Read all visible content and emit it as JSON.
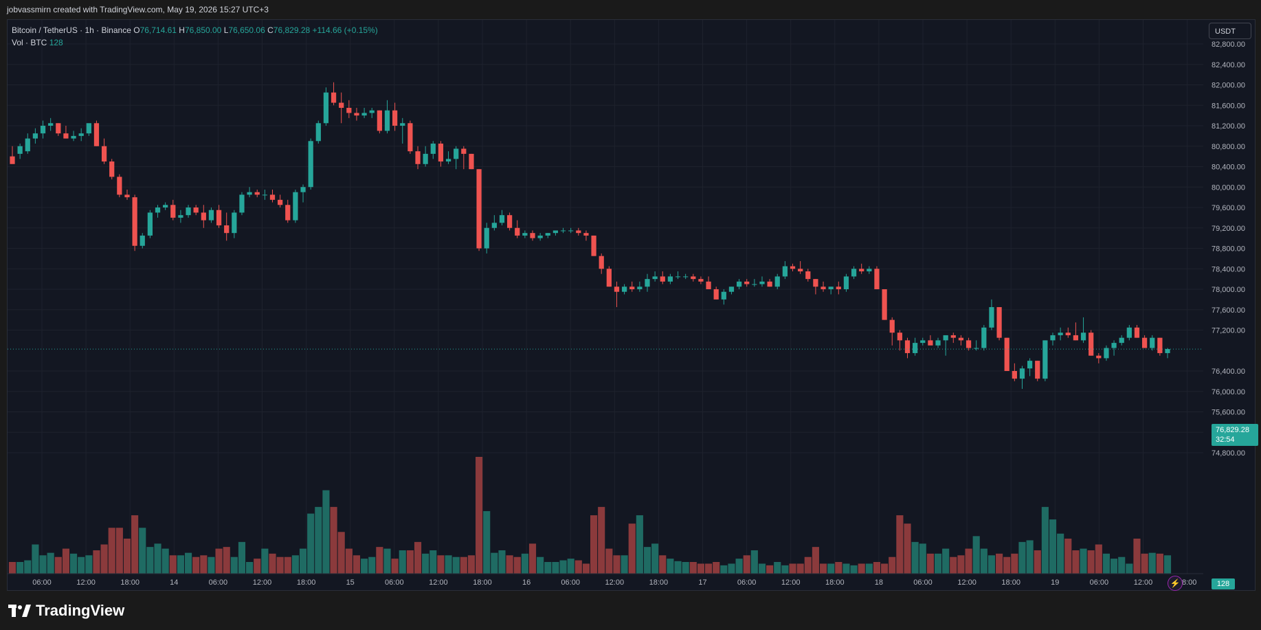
{
  "header": {
    "attribution": "jobvassmirn created with TradingView.com, May 19, 2026 15:27 UTC+3"
  },
  "legend": {
    "symbol": "Bitcoin / TetherUS · 1h · Binance",
    "o_label": "O",
    "o": "76,714.61",
    "h_label": "H",
    "h": "76,850.00",
    "l_label": "L",
    "l": "76,650.06",
    "c_label": "C",
    "c": "76,829.28",
    "change": "+114.66 (+0.15%)",
    "vol_label": "Vol · BTC",
    "vol_value": "128"
  },
  "currency": "USDT",
  "last_price": "76,829.28",
  "countdown": "32:54",
  "last_volume": "128",
  "brand": "TradingView",
  "colors": {
    "up": "#26a69a",
    "down": "#ef5350",
    "up_vol": "#1f6b63",
    "down_vol": "#8b3a3c",
    "background": "#131722",
    "grid": "#1e222d"
  },
  "chart_data": {
    "type": "candlestick",
    "interval": "1h",
    "y_ticks": [
      "82,800.00",
      "82,400.00",
      "82,000.00",
      "81,600.00",
      "81,200.00",
      "80,800.00",
      "80,400.00",
      "80,000.00",
      "79,600.00",
      "79,200.00",
      "78,800.00",
      "78,400.00",
      "78,000.00",
      "77,600.00",
      "77,200.00",
      "76,400.00",
      "76,000.00",
      "75,600.00",
      "75,200.00",
      "74,800.00"
    ],
    "x_ticks": [
      "06:00",
      "12:00",
      "18:00",
      "14",
      "06:00",
      "12:00",
      "18:00",
      "15",
      "06:00",
      "12:00",
      "18:00",
      "16",
      "06:00",
      "12:00",
      "18:00",
      "17",
      "06:00",
      "12:00",
      "18:00",
      "18",
      "06:00",
      "12:00",
      "18:00",
      "19",
      "06:00",
      "12:00",
      "18:00"
    ],
    "ohlc": [
      [
        80600,
        80800,
        80500,
        80450
      ],
      [
        80650,
        80850,
        80550,
        80800
      ],
      [
        80700,
        81050,
        80650,
        80950
      ],
      [
        80950,
        81150,
        80850,
        81050
      ],
      [
        81050,
        81300,
        80950,
        81200
      ],
      [
        81200,
        81350,
        81100,
        81250
      ],
      [
        81250,
        81250,
        81000,
        81050
      ],
      [
        81050,
        81200,
        80950,
        80950
      ],
      [
        80950,
        81100,
        80900,
        81000
      ],
      [
        81000,
        81150,
        80900,
        81050
      ],
      [
        81050,
        81200,
        81000,
        81250
      ],
      [
        81250,
        81300,
        80800,
        80800
      ],
      [
        80800,
        80950,
        80450,
        80500
      ],
      [
        80500,
        80550,
        80150,
        80200
      ],
      [
        80200,
        80250,
        79800,
        79850
      ],
      [
        79850,
        79950,
        79750,
        79800
      ],
      [
        79800,
        79850,
        78750,
        78850
      ],
      [
        78850,
        79100,
        78800,
        79050
      ],
      [
        79050,
        79550,
        79000,
        79500
      ],
      [
        79500,
        79650,
        79400,
        79600
      ],
      [
        79600,
        79700,
        79550,
        79650
      ],
      [
        79650,
        79750,
        79350,
        79400
      ],
      [
        79400,
        79550,
        79300,
        79450
      ],
      [
        79450,
        79650,
        79400,
        79600
      ],
      [
        79600,
        79650,
        79450,
        79500
      ],
      [
        79500,
        79650,
        79200,
        79350
      ],
      [
        79350,
        79600,
        79300,
        79550
      ],
      [
        79550,
        79650,
        79200,
        79250
      ],
      [
        79250,
        79500,
        78950,
        79100
      ],
      [
        79100,
        79550,
        79000,
        79500
      ],
      [
        79500,
        79900,
        79450,
        79850
      ],
      [
        79850,
        80000,
        79800,
        79900
      ],
      [
        79900,
        79950,
        79800,
        79850
      ],
      [
        79850,
        79950,
        79750,
        79850
      ],
      [
        79850,
        79950,
        79700,
        79750
      ],
      [
        79750,
        79850,
        79600,
        79650
      ],
      [
        79650,
        79750,
        79300,
        79350
      ],
      [
        79350,
        79950,
        79300,
        79900
      ],
      [
        79900,
        80050,
        79700,
        80000
      ],
      [
        80000,
        80950,
        79950,
        80900
      ],
      [
        80900,
        81300,
        80850,
        81250
      ],
      [
        81250,
        81950,
        81200,
        81850
      ],
      [
        81850,
        82050,
        81600,
        81650
      ],
      [
        81650,
        81850,
        81250,
        81550
      ],
      [
        81550,
        81700,
        81350,
        81450
      ],
      [
        81450,
        81550,
        81300,
        81400
      ],
      [
        81400,
        81550,
        81350,
        81450
      ],
      [
        81450,
        81550,
        81350,
        81500
      ],
      [
        81500,
        81500,
        81050,
        81100
      ],
      [
        81100,
        81700,
        81050,
        81500
      ],
      [
        81500,
        81650,
        81100,
        81200
      ],
      [
        81200,
        81350,
        80850,
        81250
      ],
      [
        81250,
        81300,
        80650,
        80700
      ],
      [
        80700,
        80800,
        80350,
        80450
      ],
      [
        80450,
        80800,
        80400,
        80650
      ],
      [
        80650,
        80900,
        80550,
        80850
      ],
      [
        80850,
        80900,
        80400,
        80500
      ],
      [
        80500,
        80700,
        80450,
        80550
      ],
      [
        80550,
        80800,
        80350,
        80750
      ],
      [
        80750,
        80800,
        80350,
        80650
      ],
      [
        80650,
        80650,
        80350,
        80350
      ],
      [
        80350,
        80350,
        78750,
        78800
      ],
      [
        78800,
        79300,
        78700,
        79200
      ],
      [
        79200,
        79450,
        79150,
        79300
      ],
      [
        79300,
        79550,
        79250,
        79450
      ],
      [
        79450,
        79500,
        79150,
        79200
      ],
      [
        79200,
        79350,
        79000,
        79050
      ],
      [
        79050,
        79150,
        79000,
        79100
      ],
      [
        79100,
        79150,
        78950,
        79000
      ],
      [
        79000,
        79100,
        78950,
        79050
      ],
      [
        79050,
        79100,
        79000,
        79100
      ],
      [
        79100,
        79150,
        79050,
        79150
      ],
      [
        79150,
        79200,
        79100,
        79150
      ],
      [
        79150,
        79200,
        79100,
        79150
      ],
      [
        79150,
        79200,
        79050,
        79100
      ],
      [
        79100,
        79150,
        78950,
        79050
      ],
      [
        79050,
        79050,
        78650,
        78650
      ],
      [
        78650,
        78700,
        78300,
        78400
      ],
      [
        78400,
        78450,
        78050,
        78050
      ],
      [
        78050,
        78150,
        77650,
        77950
      ],
      [
        77950,
        78100,
        77900,
        78050
      ],
      [
        78050,
        78150,
        77950,
        78000
      ],
      [
        78000,
        78150,
        77950,
        78050
      ],
      [
        78050,
        78300,
        77950,
        78200
      ],
      [
        78200,
        78350,
        78150,
        78250
      ],
      [
        78250,
        78350,
        78100,
        78150
      ],
      [
        78150,
        78300,
        78100,
        78250
      ],
      [
        78250,
        78350,
        78200,
        78250
      ],
      [
        78250,
        78300,
        78200,
        78250
      ],
      [
        78250,
        78300,
        78150,
        78200
      ],
      [
        78200,
        78250,
        78100,
        78150
      ],
      [
        78150,
        78250,
        78050,
        78000
      ],
      [
        78000,
        78050,
        77800,
        77800
      ],
      [
        77800,
        78000,
        77700,
        77950
      ],
      [
        77950,
        78050,
        77900,
        78050
      ],
      [
        78050,
        78200,
        78000,
        78150
      ],
      [
        78150,
        78200,
        78050,
        78100
      ],
      [
        78100,
        78200,
        78050,
        78100
      ],
      [
        78100,
        78250,
        78050,
        78150
      ],
      [
        78150,
        78200,
        78050,
        78050
      ],
      [
        78050,
        78300,
        78000,
        78250
      ],
      [
        78250,
        78550,
        78200,
        78450
      ],
      [
        78450,
        78500,
        78350,
        78400
      ],
      [
        78400,
        78550,
        78300,
        78350
      ],
      [
        78350,
        78400,
        78150,
        78200
      ],
      [
        78200,
        78200,
        77900,
        78050
      ],
      [
        78050,
        78150,
        77950,
        78000
      ],
      [
        78000,
        78050,
        77900,
        78050
      ],
      [
        78050,
        78150,
        77900,
        78000
      ],
      [
        78000,
        78300,
        77950,
        78250
      ],
      [
        78250,
        78450,
        78200,
        78400
      ],
      [
        78400,
        78500,
        78300,
        78350
      ],
      [
        78350,
        78450,
        78300,
        78400
      ],
      [
        78400,
        78450,
        78000,
        78000
      ],
      [
        78000,
        78000,
        77400,
        77400
      ],
      [
        77400,
        77450,
        76900,
        77150
      ],
      [
        77150,
        77200,
        76800,
        77000
      ],
      [
        77000,
        77050,
        76650,
        76750
      ],
      [
        76750,
        77050,
        76700,
        76950
      ],
      [
        76950,
        77050,
        76900,
        77000
      ],
      [
        77000,
        77100,
        76950,
        76900
      ],
      [
        76900,
        77050,
        76850,
        77000
      ],
      [
        77000,
        77050,
        76700,
        77100
      ],
      [
        77100,
        77150,
        76950,
        77050
      ],
      [
        77050,
        77100,
        76900,
        77000
      ],
      [
        77000,
        77050,
        76800,
        76850
      ],
      [
        76850,
        77000,
        76800,
        76850
      ],
      [
        76850,
        77300,
        76800,
        77250
      ],
      [
        77250,
        77800,
        77200,
        77650
      ],
      [
        77650,
        77650,
        77000,
        77050
      ],
      [
        77050,
        77050,
        76400,
        76400
      ],
      [
        76400,
        76550,
        76200,
        76250
      ],
      [
        76250,
        76500,
        76050,
        76450
      ],
      [
        76450,
        76650,
        76300,
        76600
      ],
      [
        76600,
        76600,
        76200,
        76250
      ],
      [
        76250,
        77000,
        76200,
        77000
      ],
      [
        77000,
        77150,
        76900,
        77100
      ],
      [
        77100,
        77250,
        77000,
        77150
      ],
      [
        77150,
        77250,
        77050,
        77100
      ],
      [
        77100,
        77350,
        77000,
        77000
      ],
      [
        77000,
        77450,
        76950,
        77150
      ],
      [
        77150,
        77200,
        76700,
        76700
      ],
      [
        76700,
        76750,
        76550,
        76650
      ],
      [
        76650,
        76900,
        76600,
        76850
      ],
      [
        76850,
        77000,
        76700,
        76950
      ],
      [
        76950,
        77100,
        76900,
        77050
      ],
      [
        77050,
        77300,
        77000,
        77250
      ],
      [
        77250,
        77300,
        77050,
        77050
      ],
      [
        77050,
        77100,
        76850,
        76850
      ],
      [
        76850,
        77100,
        76800,
        77050
      ],
      [
        77050,
        77050,
        76700,
        76750
      ],
      [
        76750,
        76850,
        76650,
        76830
      ]
    ],
    "volume": [
      14,
      14,
      16,
      35,
      22,
      25,
      20,
      30,
      24,
      20,
      22,
      28,
      35,
      55,
      55,
      42,
      70,
      55,
      32,
      36,
      30,
      22,
      22,
      25,
      20,
      22,
      20,
      30,
      32,
      20,
      38,
      14,
      18,
      30,
      24,
      20,
      20,
      22,
      30,
      72,
      80,
      100,
      80,
      50,
      30,
      22,
      18,
      20,
      32,
      30,
      18,
      28,
      28,
      38,
      24,
      28,
      22,
      22,
      20,
      20,
      22,
      140,
      75,
      25,
      28,
      22,
      20,
      24,
      36,
      20,
      14,
      14,
      16,
      18,
      16,
      12,
      70,
      80,
      30,
      22,
      22,
      60,
      70,
      32,
      36,
      22,
      18,
      15,
      14,
      14,
      12,
      12,
      14,
      10,
      12,
      18,
      22,
      28,
      12,
      10,
      14,
      10,
      12,
      12,
      20,
      32,
      12,
      12,
      14,
      12,
      10,
      12,
      12,
      14,
      12,
      20,
      70,
      60,
      38,
      36,
      24,
      24,
      30,
      20,
      22,
      30,
      45,
      30,
      22,
      24,
      20,
      24,
      38,
      40,
      28,
      80,
      65,
      48,
      42,
      28,
      30,
      28,
      35,
      24,
      18,
      20,
      12,
      42,
      24,
      25,
      24,
      22,
      20,
      22,
      12,
      14
    ]
  }
}
